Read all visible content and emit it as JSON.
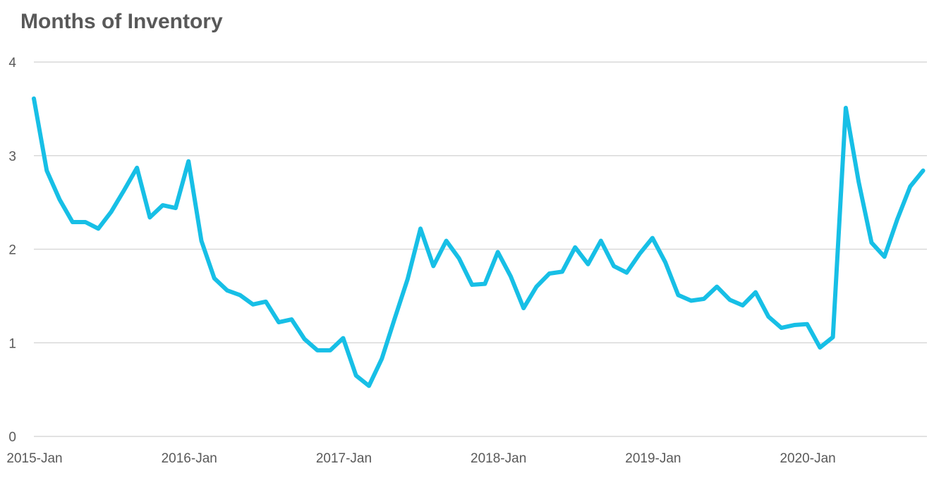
{
  "chart_data": {
    "type": "line",
    "title": "Months of Inventory",
    "xlabel": "",
    "ylabel": "",
    "ylim": [
      0,
      4
    ],
    "yticks": [
      "0",
      "1",
      "2",
      "3",
      "4"
    ],
    "grid": true,
    "legend": "none",
    "x_tick_labels": [
      "2015-Jan",
      "2016-Jan",
      "2017-Jan",
      "2018-Jan",
      "2019-Jan",
      "2020-Jan"
    ],
    "x": [
      "2015-Jan",
      "2015-Feb",
      "2015-Mar",
      "2015-Apr",
      "2015-May",
      "2015-Jun",
      "2015-Jul",
      "2015-Aug",
      "2015-Sep",
      "2015-Oct",
      "2015-Nov",
      "2015-Dec",
      "2016-Jan",
      "2016-Feb",
      "2016-Mar",
      "2016-Apr",
      "2016-May",
      "2016-Jun",
      "2016-Jul",
      "2016-Aug",
      "2016-Sep",
      "2016-Oct",
      "2016-Nov",
      "2016-Dec",
      "2017-Jan",
      "2017-Feb",
      "2017-Mar",
      "2017-Apr",
      "2017-May",
      "2017-Jun",
      "2017-Jul",
      "2017-Aug",
      "2017-Sep",
      "2017-Oct",
      "2017-Nov",
      "2017-Dec",
      "2018-Jan",
      "2018-Feb",
      "2018-Mar",
      "2018-Apr",
      "2018-May",
      "2018-Jun",
      "2018-Jul",
      "2018-Aug",
      "2018-Sep",
      "2018-Oct",
      "2018-Nov",
      "2018-Dec",
      "2019-Jan",
      "2019-Feb",
      "2019-Mar",
      "2019-Apr",
      "2019-May",
      "2019-Jun",
      "2019-Jul",
      "2019-Aug",
      "2019-Sep",
      "2019-Oct",
      "2019-Nov",
      "2019-Dec",
      "2020-Jan",
      "2020-Feb",
      "2020-Mar",
      "2020-Apr",
      "2020-May",
      "2020-Jun",
      "2020-Jul",
      "2020-Aug",
      "2020-Sep",
      "2020-Oct"
    ],
    "series": [
      {
        "color": "#17bfe6",
        "values": [
          3.61,
          2.84,
          2.53,
          2.29,
          2.29,
          2.22,
          2.4,
          2.63,
          2.87,
          2.34,
          2.47,
          2.44,
          2.94,
          2.09,
          1.69,
          1.56,
          1.51,
          1.41,
          1.44,
          1.22,
          1.25,
          1.04,
          0.92,
          0.92,
          1.05,
          0.65,
          0.54,
          0.83,
          1.26,
          1.68,
          2.22,
          1.82,
          2.09,
          1.9,
          1.62,
          1.63,
          1.97,
          1.71,
          1.37,
          1.6,
          1.74,
          1.76,
          2.02,
          1.84,
          2.09,
          1.82,
          1.75,
          1.95,
          2.12,
          1.86,
          1.51,
          1.45,
          1.47,
          1.6,
          1.46,
          1.4,
          1.54,
          1.28,
          1.16,
          1.19,
          1.2,
          0.95,
          1.06,
          3.51,
          2.72,
          2.07,
          1.92,
          2.32,
          2.67,
          2.84
        ]
      }
    ]
  }
}
